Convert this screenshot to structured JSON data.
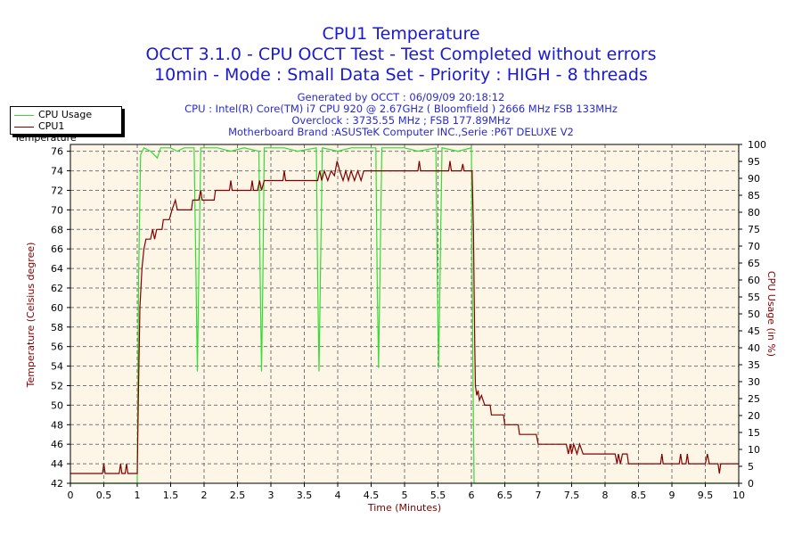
{
  "chart_data": {
    "type": "line",
    "title": "CPU1 Temperature",
    "subtitles": [
      "OCCT 3.1.0 - CPU OCCT Test - Test Completed without errors",
      "10min - Mode : Small Data Set - Priority : HIGH - 8 threads"
    ],
    "info_lines": [
      "Generated by OCCT : 06/09/09 20:18:12",
      "CPU : Intel(R) Core(TM) i7 CPU 920 @ 2.67GHz ( Bloomfield ) 2666 MHz FSB 133MHz",
      "Overclock : 3735.55 MHz ; FSB 177.89MHz",
      "Motherboard Brand :ASUSTeK Computer INC.,Serie :P6T DELUXE V2"
    ],
    "xlabel": "Time (Minutes)",
    "ylabel": "Temperature (Celsius degree)",
    "y2label": "CPU Usage (in %)",
    "xlim": [
      0,
      10
    ],
    "ylim": [
      42,
      76.7
    ],
    "y2lim": [
      0,
      100
    ],
    "xticks": [
      "0",
      "0.5",
      "1",
      "1.5",
      "2",
      "2.5",
      "3",
      "3.5",
      "4",
      "4.5",
      "5",
      "5.5",
      "6",
      "6.5",
      "7",
      "7.5",
      "8",
      "8.5",
      "9",
      "9.5",
      "10"
    ],
    "yticks": [
      "42",
      "44",
      "46",
      "48",
      "50",
      "52",
      "54",
      "56",
      "58",
      "60",
      "62",
      "64",
      "66",
      "68",
      "70",
      "72",
      "74",
      "76"
    ],
    "y2ticks": [
      "0",
      "5",
      "10",
      "15",
      "20",
      "25",
      "30",
      "35",
      "40",
      "45",
      "50",
      "55",
      "60",
      "65",
      "70",
      "75",
      "80",
      "85",
      "90",
      "95",
      "100"
    ],
    "grid": true,
    "legend_placement": "top-left",
    "colors": {
      "background": "#fdf5e6",
      "title": "#1a1ad0",
      "axis_label": "#800000",
      "cpu_usage": "#33dd33",
      "cpu_temp": "#800000"
    },
    "series": [
      {
        "name": "CPU Usage",
        "axis": "right",
        "color": "#33dd33",
        "points": [
          [
            0,
            0
          ],
          [
            1.0,
            0
          ],
          [
            1.02,
            60
          ],
          [
            1.05,
            97
          ],
          [
            1.1,
            99
          ],
          [
            1.2,
            98
          ],
          [
            1.3,
            96
          ],
          [
            1.35,
            99
          ],
          [
            1.5,
            99
          ],
          [
            1.6,
            98
          ],
          [
            1.7,
            99
          ],
          [
            1.85,
            99
          ],
          [
            1.88,
            60
          ],
          [
            1.9,
            33
          ],
          [
            1.92,
            60
          ],
          [
            1.95,
            99
          ],
          [
            2.2,
            99
          ],
          [
            2.4,
            98
          ],
          [
            2.6,
            99
          ],
          [
            2.82,
            98
          ],
          [
            2.84,
            60
          ],
          [
            2.86,
            33
          ],
          [
            2.88,
            60
          ],
          [
            2.9,
            99
          ],
          [
            3.2,
            99
          ],
          [
            3.4,
            98
          ],
          [
            3.68,
            99
          ],
          [
            3.7,
            60
          ],
          [
            3.72,
            33
          ],
          [
            3.74,
            60
          ],
          [
            3.77,
            99
          ],
          [
            4.0,
            98
          ],
          [
            4.2,
            99
          ],
          [
            4.57,
            99
          ],
          [
            4.59,
            60
          ],
          [
            4.61,
            34
          ],
          [
            4.63,
            60
          ],
          [
            4.66,
            99
          ],
          [
            5.0,
            99
          ],
          [
            5.2,
            98
          ],
          [
            5.47,
            99
          ],
          [
            5.49,
            60
          ],
          [
            5.51,
            34
          ],
          [
            5.53,
            60
          ],
          [
            5.56,
            99
          ],
          [
            5.8,
            98
          ],
          [
            6.0,
            99
          ],
          [
            6.02,
            40
          ],
          [
            6.04,
            0
          ],
          [
            10,
            0
          ]
        ]
      },
      {
        "name": "CPU1 Temperature",
        "axis": "left",
        "color": "#800000",
        "points": [
          [
            0,
            43
          ],
          [
            0.48,
            43
          ],
          [
            0.5,
            44
          ],
          [
            0.52,
            43
          ],
          [
            0.73,
            43
          ],
          [
            0.75,
            44
          ],
          [
            0.77,
            43
          ],
          [
            0.82,
            43
          ],
          [
            0.84,
            44
          ],
          [
            0.86,
            43
          ],
          [
            1.0,
            43
          ],
          [
            1.02,
            52
          ],
          [
            1.04,
            60
          ],
          [
            1.07,
            64
          ],
          [
            1.1,
            66
          ],
          [
            1.13,
            67
          ],
          [
            1.2,
            67
          ],
          [
            1.23,
            68
          ],
          [
            1.26,
            67
          ],
          [
            1.29,
            68
          ],
          [
            1.37,
            68
          ],
          [
            1.39,
            69
          ],
          [
            1.48,
            69
          ],
          [
            1.52,
            70
          ],
          [
            1.57,
            71
          ],
          [
            1.6,
            70
          ],
          [
            1.81,
            70
          ],
          [
            1.83,
            71
          ],
          [
            1.92,
            71
          ],
          [
            1.95,
            72
          ],
          [
            1.97,
            71
          ],
          [
            2.15,
            71
          ],
          [
            2.17,
            72
          ],
          [
            2.38,
            72
          ],
          [
            2.4,
            73
          ],
          [
            2.42,
            72
          ],
          [
            2.7,
            72
          ],
          [
            2.72,
            73
          ],
          [
            2.74,
            72
          ],
          [
            2.8,
            72
          ],
          [
            2.83,
            73
          ],
          [
            2.86,
            72
          ],
          [
            2.9,
            73
          ],
          [
            2.95,
            73
          ],
          [
            3.18,
            73
          ],
          [
            3.2,
            74
          ],
          [
            3.22,
            73
          ],
          [
            3.7,
            73
          ],
          [
            3.73,
            74
          ],
          [
            3.76,
            73
          ],
          [
            3.8,
            74
          ],
          [
            3.85,
            73
          ],
          [
            3.9,
            74
          ],
          [
            3.95,
            73.5
          ],
          [
            3.99,
            75
          ],
          [
            4.03,
            74
          ],
          [
            4.08,
            73
          ],
          [
            4.12,
            74
          ],
          [
            4.16,
            73
          ],
          [
            4.2,
            74
          ],
          [
            4.25,
            73
          ],
          [
            4.3,
            74
          ],
          [
            4.35,
            73
          ],
          [
            4.39,
            74
          ],
          [
            5.2,
            74
          ],
          [
            5.22,
            75
          ],
          [
            5.24,
            74
          ],
          [
            5.66,
            74
          ],
          [
            5.68,
            75
          ],
          [
            5.7,
            74
          ],
          [
            5.85,
            74
          ],
          [
            5.87,
            74.7
          ],
          [
            5.89,
            74
          ],
          [
            6.01,
            74
          ],
          [
            6.03,
            68
          ],
          [
            6.05,
            56
          ],
          [
            6.06,
            52
          ],
          [
            6.08,
            51
          ],
          [
            6.1,
            51.5
          ],
          [
            6.12,
            50.5
          ],
          [
            6.15,
            51
          ],
          [
            6.2,
            50
          ],
          [
            6.28,
            50
          ],
          [
            6.3,
            49
          ],
          [
            6.48,
            49
          ],
          [
            6.5,
            48
          ],
          [
            6.7,
            48
          ],
          [
            6.72,
            47
          ],
          [
            6.97,
            47
          ],
          [
            7.0,
            46
          ],
          [
            7.42,
            46
          ],
          [
            7.45,
            45
          ],
          [
            7.48,
            46
          ],
          [
            7.5,
            45
          ],
          [
            7.53,
            46
          ],
          [
            7.58,
            45
          ],
          [
            7.62,
            46
          ],
          [
            7.67,
            45
          ],
          [
            8.15,
            45
          ],
          [
            8.18,
            44
          ],
          [
            8.2,
            45
          ],
          [
            8.23,
            44
          ],
          [
            8.26,
            45
          ],
          [
            8.33,
            45
          ],
          [
            8.35,
            44
          ],
          [
            8.83,
            44
          ],
          [
            8.85,
            45
          ],
          [
            8.87,
            44
          ],
          [
            9.11,
            44
          ],
          [
            9.13,
            45
          ],
          [
            9.15,
            44
          ],
          [
            9.21,
            44
          ],
          [
            9.23,
            45
          ],
          [
            9.25,
            44
          ],
          [
            9.5,
            44
          ],
          [
            9.53,
            45
          ],
          [
            9.56,
            44
          ],
          [
            9.69,
            44
          ],
          [
            9.71,
            43
          ],
          [
            9.73,
            44
          ],
          [
            10,
            44
          ]
        ]
      }
    ]
  }
}
